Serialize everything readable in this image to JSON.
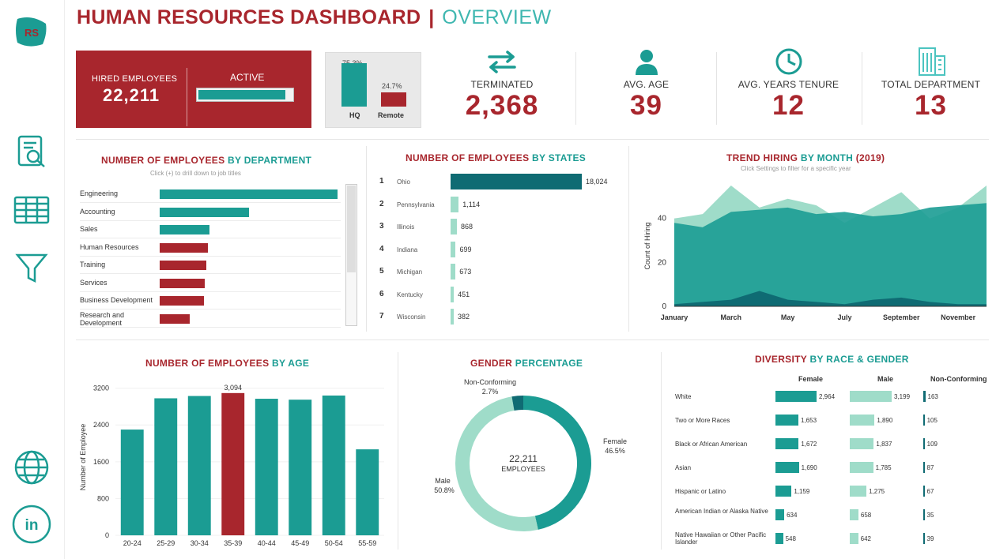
{
  "header": {
    "title": "HUMAN RESOURCES DASHBOARD",
    "separator": "|",
    "subtitle": "OVERVIEW"
  },
  "sidebar": {
    "logo_text": "RS",
    "icons": [
      "document-search-icon",
      "table-icon",
      "filter-icon",
      "globe-icon",
      "linkedin-icon"
    ],
    "linkedin_text": "in"
  },
  "colors": {
    "red": "#a8262d",
    "teal": "#1b9c93",
    "dark_teal": "#0f6b73",
    "light_teal": "#9fdcc9"
  },
  "kpis": {
    "hired": {
      "label": "HIRED EMPLOYEES",
      "value": "22,211",
      "active_label": "ACTIVE",
      "active_fraction": 0.93
    },
    "location": {
      "hq": {
        "label": "HQ",
        "pct": "75.3%",
        "value": 75.3
      },
      "remote": {
        "label": "Remote",
        "pct": "24.7%",
        "value": 24.7
      }
    },
    "terminated": {
      "label": "TERMINATED",
      "value": "2,368"
    },
    "avg_age": {
      "label": "AVG. AGE",
      "value": "39"
    },
    "avg_tenure": {
      "label": "AVG. YEARS TENURE",
      "value": "12"
    },
    "total_dept": {
      "label": "TOTAL DEPARTMENT",
      "value": "13"
    }
  },
  "department": {
    "title_a": "NUMBER OF EMPLOYEES",
    "title_b": "BY DEPARTMENT",
    "hint": "Click (+) to drill down to job titles",
    "items": [
      {
        "label": "Engineering",
        "value": 100,
        "color": "#1b9c93"
      },
      {
        "label": "Accounting",
        "value": 50,
        "color": "#1b9c93"
      },
      {
        "label": "Sales",
        "value": 28,
        "color": "#1b9c93"
      },
      {
        "label": "Human Resources",
        "value": 27,
        "color": "#a8262d"
      },
      {
        "label": "Training",
        "value": 26,
        "color": "#a8262d"
      },
      {
        "label": "Services",
        "value": 25.5,
        "color": "#a8262d"
      },
      {
        "label": "Business Development",
        "value": 25,
        "color": "#a8262d"
      },
      {
        "label": "Research and Development",
        "value": 17,
        "color": "#a8262d"
      }
    ]
  },
  "states": {
    "title_a": "NUMBER OF EMPLOYEES",
    "title_b": "BY STATES",
    "items": [
      {
        "rank": "1",
        "name": "Ohio",
        "value": 18024,
        "label": "18,024"
      },
      {
        "rank": "2",
        "name": "Pennsylvania",
        "value": 1114,
        "label": "1,114"
      },
      {
        "rank": "3",
        "name": "Illinois",
        "value": 868,
        "label": "868"
      },
      {
        "rank": "4",
        "name": "Indiana",
        "value": 699,
        "label": "699"
      },
      {
        "rank": "5",
        "name": "Michigan",
        "value": 673,
        "label": "673"
      },
      {
        "rank": "6",
        "name": "Kentucky",
        "value": 451,
        "label": "451"
      },
      {
        "rank": "7",
        "name": "Wisconsin",
        "value": 382,
        "label": "382"
      }
    ]
  },
  "trend": {
    "title_a": "TREND HIRING",
    "title_b": "BY MONTH",
    "title_c": "(2019)",
    "hint": "Click Settings to filter for a specific year"
  },
  "age": {
    "title_a": "NUMBER OF EMPLOYEES",
    "title_b": "BY AGE"
  },
  "gender": {
    "title_a": "GENDER",
    "title_b": "PERCENTAGE",
    "center_value": "22,211",
    "center_label": "EMPLOYEES",
    "female_label": "Female",
    "female_pct": "46.5%",
    "male_label": "Male",
    "male_pct": "50.8%",
    "nc_label": "Non-Conforming",
    "nc_pct": "2.7%"
  },
  "diversity": {
    "title_a": "DIVERSITY",
    "title_b": "BY RACE & GENDER",
    "col_female": "Female",
    "col_male": "Male",
    "col_nc": "Non-Conforming",
    "rows": [
      {
        "label": "White",
        "female": 2964,
        "female_label": "2,964",
        "male": 3199,
        "male_label": "3,199",
        "nc": 163,
        "nc_label": "163"
      },
      {
        "label": "Two or More Races",
        "female": 1653,
        "female_label": "1,653",
        "male": 1890,
        "male_label": "1,890",
        "nc": 105,
        "nc_label": "105"
      },
      {
        "label": "Black or African American",
        "female": 1672,
        "female_label": "1,672",
        "male": 1837,
        "male_label": "1,837",
        "nc": 109,
        "nc_label": "109"
      },
      {
        "label": "Asian",
        "female": 1690,
        "female_label": "1,690",
        "male": 1785,
        "male_label": "1,785",
        "nc": 87,
        "nc_label": "87"
      },
      {
        "label": "Hispanic or Latino",
        "female": 1159,
        "female_label": "1,159",
        "male": 1275,
        "male_label": "1,275",
        "nc": 67,
        "nc_label": "67"
      },
      {
        "label": "American Indian or Alaska Native",
        "female": 634,
        "female_label": "634",
        "male": 658,
        "male_label": "658",
        "nc": 35,
        "nc_label": "35"
      },
      {
        "label": "Native Hawaiian or Other Pacific Islander",
        "female": 548,
        "female_label": "548",
        "male": 642,
        "male_label": "642",
        "nc": 39,
        "nc_label": "39"
      }
    ]
  },
  "chart_data": [
    {
      "type": "area",
      "title": "TREND HIRING BY MONTH (2019)",
      "ylabel": "Count of Hiring",
      "ylim": [
        0,
        55
      ],
      "yticks": [
        "0",
        "20",
        "40"
      ],
      "x": [
        "January",
        "February",
        "March",
        "April",
        "May",
        "June",
        "July",
        "August",
        "September",
        "October",
        "November",
        "December"
      ],
      "xtick_labels": [
        "January",
        "March",
        "May",
        "July",
        "September",
        "November"
      ],
      "series": [
        {
          "values": [
            40,
            42,
            55,
            45,
            49,
            46,
            38,
            45,
            52,
            40,
            45,
            55
          ],
          "color": "#9fdcc9"
        },
        {
          "values": [
            38,
            36,
            43,
            44,
            45,
            42,
            43,
            41,
            42,
            45,
            46,
            47
          ],
          "color": "#1b9c93"
        },
        {
          "values": [
            1,
            2,
            3,
            7,
            3,
            2,
            1,
            3,
            4,
            2,
            1,
            1
          ],
          "color": "#0f6b73"
        }
      ]
    },
    {
      "type": "bar",
      "title": "NUMBER OF EMPLOYEES BY AGE",
      "ylabel": "Number of Employee",
      "ylim": [
        0,
        3400
      ],
      "yticks": [
        "0",
        "800",
        "1600",
        "2400",
        "3200"
      ],
      "categories": [
        "20-24",
        "25-29",
        "30-34",
        "35-39",
        "40-44",
        "45-49",
        "50-54",
        "55-59"
      ],
      "values": [
        2300,
        2980,
        3030,
        3094,
        2970,
        2950,
        3040,
        1870
      ],
      "highlight_label": "3,094",
      "highlight_index": 3
    },
    {
      "type": "pie",
      "title": "GENDER PERCENTAGE",
      "categories": [
        "Female",
        "Male",
        "Non-Conforming"
      ],
      "values": [
        46.5,
        50.8,
        2.7
      ]
    }
  ]
}
